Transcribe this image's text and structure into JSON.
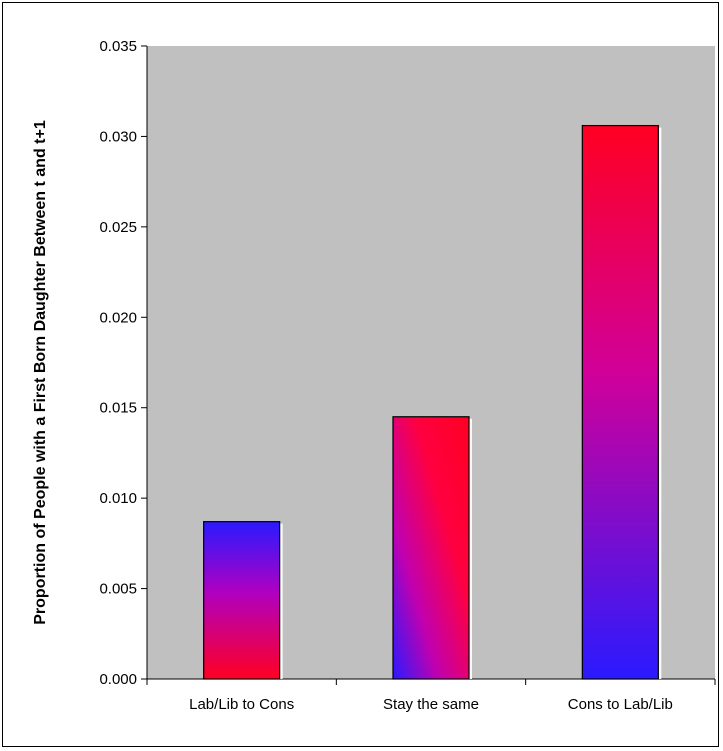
{
  "chart_data": {
    "type": "bar",
    "title": "",
    "xlabel": "",
    "ylabel": "Proportion of People with a First Born Daughter Between t and t+1",
    "categories": [
      "Lab/Lib to Cons",
      "Stay the same",
      "Cons to Lab/Lib"
    ],
    "values": [
      0.0087,
      0.0145,
      0.0306
    ],
    "ylim": [
      0,
      0.035
    ],
    "yticks": [
      "0.000",
      "0.005",
      "0.010",
      "0.015",
      "0.020",
      "0.025",
      "0.030",
      "0.035"
    ],
    "grid": false,
    "legend": "none",
    "colors": {
      "plot_background": "#c0c0c0",
      "bar_red": "#ff0022",
      "bar_magenta": "#cc00aa",
      "bar_blue": "#2a1aff"
    },
    "bar_gradients": [
      "blue-top-to-red-bottom",
      "magenta-red-diagonal-blue-bottom-left",
      "red-top-to-blue-bottom"
    ]
  }
}
